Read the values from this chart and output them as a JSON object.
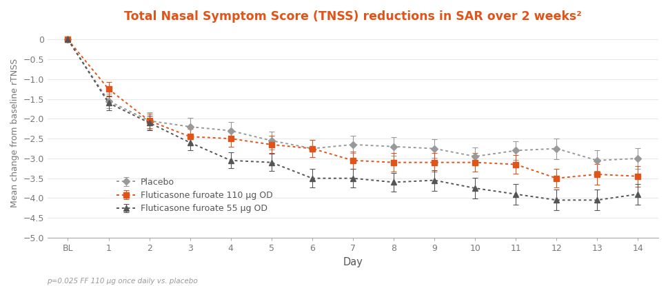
{
  "title": "Total Nasal Symptom Score (TNSS) reductions in SAR over 2 weeks²",
  "title_color": "#e0541a",
  "xlabel": "Day",
  "ylabel": "Mean change from baseline rTNSS",
  "footnote": "p=0.025 FF 110 μg once daily vs. placebo",
  "x_labels": [
    "BL",
    "1",
    "2",
    "3",
    "4",
    "5",
    "6",
    "7",
    "8",
    "9",
    "10",
    "11",
    "12",
    "13",
    "14"
  ],
  "x_values": [
    0,
    1,
    2,
    3,
    4,
    5,
    6,
    7,
    8,
    9,
    10,
    11,
    12,
    13,
    14
  ],
  "placebo": {
    "y": [
      0.0,
      -1.55,
      -2.05,
      -2.2,
      -2.3,
      -2.55,
      -2.75,
      -2.65,
      -2.7,
      -2.75,
      -2.95,
      -2.8,
      -2.75,
      -3.05,
      -3.0
    ],
    "yerr": [
      0.0,
      0.18,
      0.22,
      0.22,
      0.22,
      0.22,
      0.22,
      0.22,
      0.24,
      0.24,
      0.22,
      0.24,
      0.26,
      0.26,
      0.26
    ],
    "color": "#999999",
    "label": "Placebo",
    "marker": "D",
    "markersize": 5.5,
    "linewidth": 1.4
  },
  "ff110": {
    "y": [
      0.0,
      -1.25,
      -2.05,
      -2.45,
      -2.5,
      -2.65,
      -2.75,
      -3.05,
      -3.1,
      -3.1,
      -3.1,
      -3.15,
      -3.5,
      -3.4,
      -3.45
    ],
    "yerr": [
      0.0,
      0.18,
      0.18,
      0.2,
      0.2,
      0.22,
      0.22,
      0.22,
      0.24,
      0.24,
      0.24,
      0.24,
      0.24,
      0.26,
      0.26
    ],
    "color": "#e0541a",
    "label": "Fluticasone furoate 110 μg OD",
    "marker": "s",
    "markersize": 5.5,
    "linewidth": 1.4
  },
  "ff55": {
    "y": [
      0.0,
      -1.6,
      -2.1,
      -2.6,
      -3.05,
      -3.1,
      -3.5,
      -3.5,
      -3.6,
      -3.55,
      -3.75,
      -3.9,
      -4.05,
      -4.05,
      -3.9
    ],
    "yerr": [
      0.0,
      0.18,
      0.18,
      0.2,
      0.2,
      0.22,
      0.24,
      0.24,
      0.24,
      0.26,
      0.26,
      0.26,
      0.26,
      0.26,
      0.26
    ],
    "color": "#555555",
    "label": "Fluticasone furoate 55 μg OD",
    "marker": "^",
    "markersize": 6,
    "linewidth": 1.4
  },
  "ylim": [
    -5.0,
    0.3
  ],
  "yticks": [
    0.0,
    -0.5,
    -1.0,
    -1.5,
    -2.0,
    -2.5,
    -3.0,
    -3.5,
    -4.0,
    -4.5,
    -5.0
  ],
  "ytick_labels": [
    "0",
    "−0.5",
    "−1.0",
    "−1.5",
    "−2.0",
    "−2.5",
    "−3.0",
    "−3.5",
    "−4.0",
    "−4.5",
    "−5.0"
  ],
  "background_color": "#ffffff"
}
